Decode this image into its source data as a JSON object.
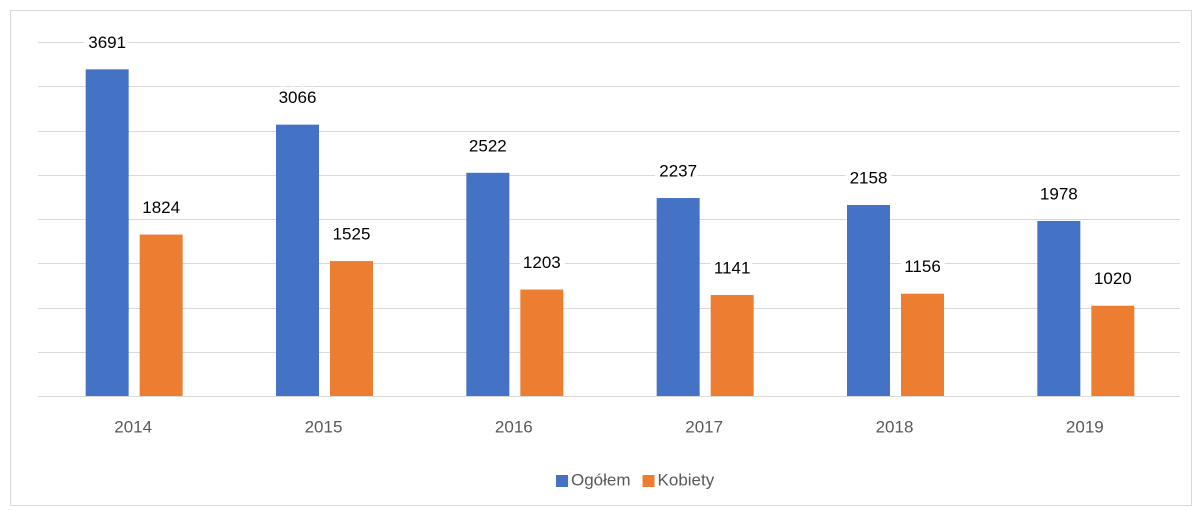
{
  "chart_data": {
    "type": "bar",
    "categories": [
      "2014",
      "2015",
      "2016",
      "2017",
      "2018",
      "2019"
    ],
    "series": [
      {
        "name": "Ogółem",
        "color": "#4472c4",
        "values": [
          3691,
          3066,
          2522,
          2237,
          2158,
          1978
        ]
      },
      {
        "name": "Kobiety",
        "color": "#ed7d31",
        "values": [
          1824,
          1525,
          1203,
          1141,
          1156,
          1020
        ]
      }
    ],
    "ylim": [
      0,
      4000
    ],
    "yticks": [
      0,
      500,
      1000,
      1500,
      2000,
      2500,
      3000,
      3500,
      4000
    ],
    "grid": true,
    "legend": "bottom"
  }
}
